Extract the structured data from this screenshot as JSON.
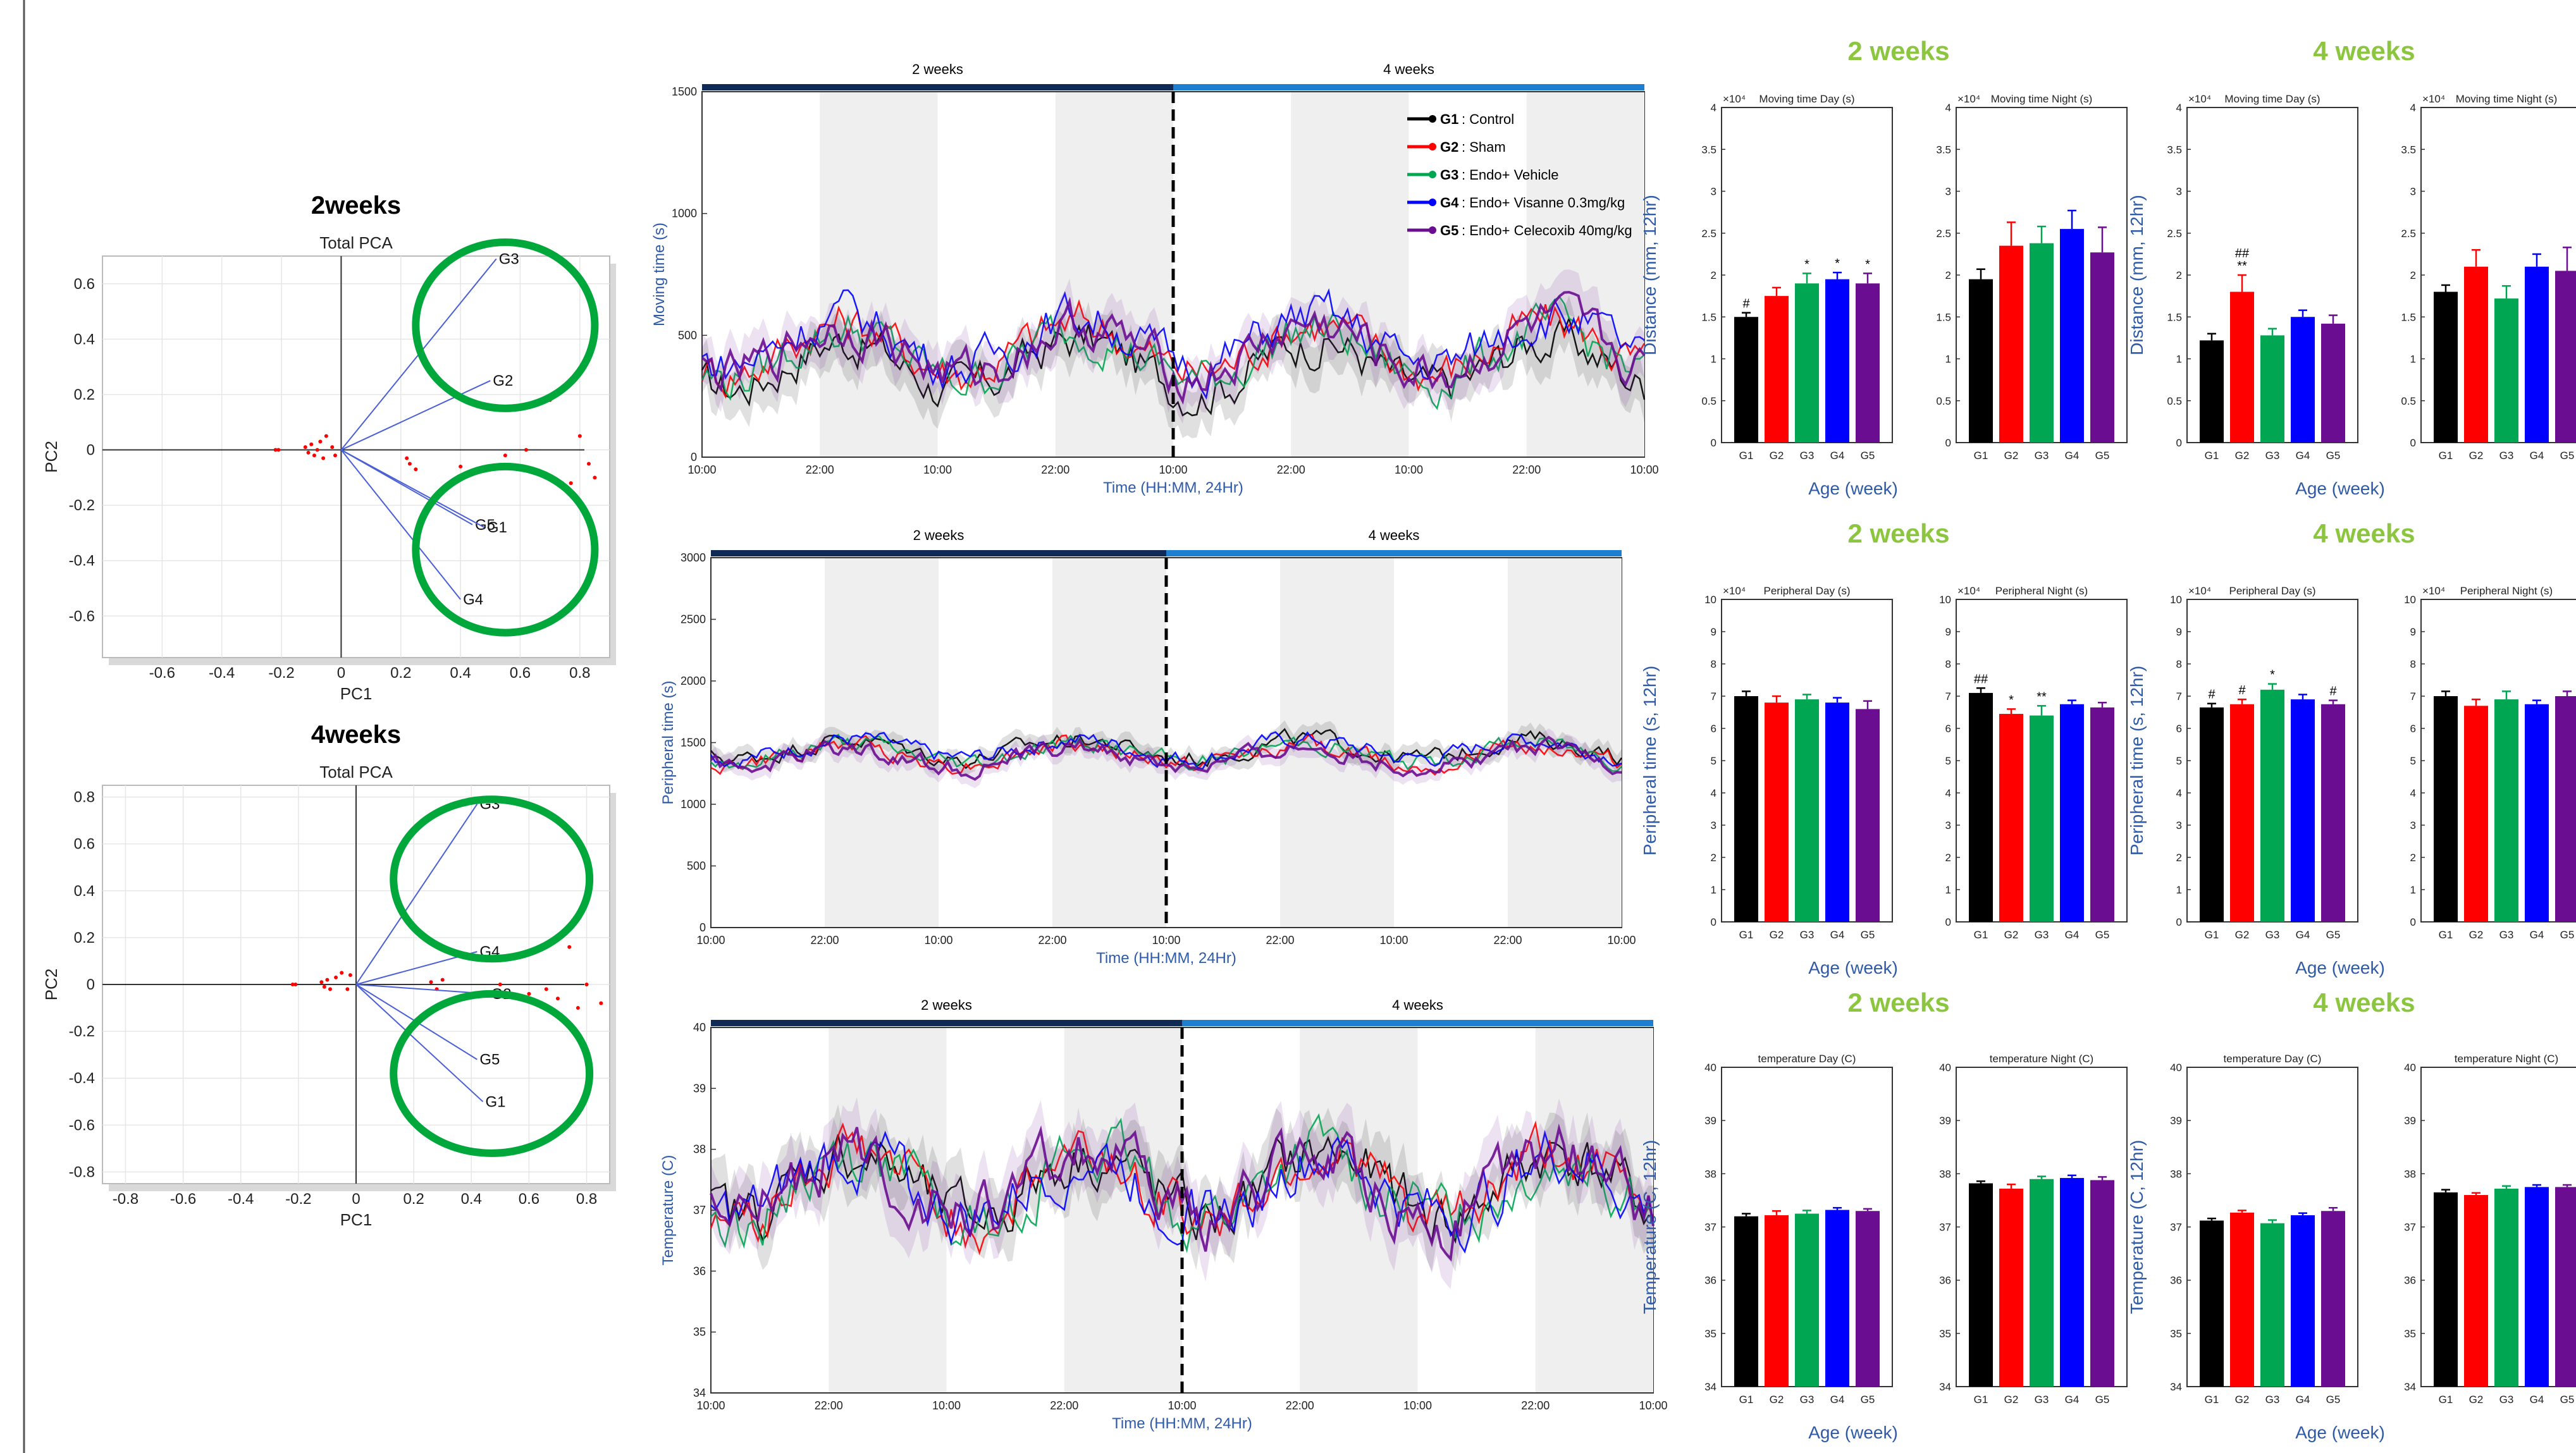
{
  "colors": {
    "G1": "#000000",
    "G2": "#ff0000",
    "G3": "#00a651",
    "G4": "#0000ff",
    "G5": "#6a0d91",
    "green_title": "#8cc63f",
    "blue_label": "#2e5aa8",
    "circle": "#00a83b",
    "night_shade": "#efefef",
    "pca_point": "#ff0000",
    "pca_vector": "#4b5fd6",
    "bar_dark": "#0f2a55",
    "bar_light": "#1e7fd0"
  },
  "chart_data": [
    {
      "id": "pca_2weeks",
      "type": "scatter",
      "heading": "2weeks",
      "title": "Total PCA",
      "xlabel": "PC1",
      "ylabel": "PC2",
      "xlim": [
        -0.8,
        0.9
      ],
      "ylim": [
        -0.75,
        0.7
      ],
      "xticks": [
        "-0.6",
        "-0.4",
        "-0.2",
        "0",
        "0.2",
        "0.4",
        "0.6",
        "0.8"
      ],
      "yticks": [
        "-0.6",
        "-0.4",
        "-0.2",
        "0",
        "0.2",
        "0.4",
        "0.6"
      ],
      "vectors": [
        {
          "label": "G3",
          "x": 0.52,
          "y": 0.69
        },
        {
          "label": "G2",
          "x": 0.5,
          "y": 0.25
        },
        {
          "label": "G5",
          "x": 0.44,
          "y": -0.27
        },
        {
          "label": "G1",
          "x": 0.48,
          "y": -0.28
        },
        {
          "label": "G4",
          "x": 0.4,
          "y": -0.54
        }
      ],
      "points": [
        [
          -0.22,
          0
        ],
        [
          -0.21,
          0
        ],
        [
          -0.12,
          0.01
        ],
        [
          -0.11,
          -0.01
        ],
        [
          -0.1,
          0.02
        ],
        [
          -0.09,
          -0.02
        ],
        [
          -0.08,
          0
        ],
        [
          -0.07,
          0.03
        ],
        [
          -0.06,
          -0.03
        ],
        [
          -0.05,
          0.05
        ],
        [
          -0.03,
          0.01
        ],
        [
          -0.02,
          -0.02
        ],
        [
          0.22,
          -0.03
        ],
        [
          0.23,
          -0.05
        ],
        [
          0.25,
          -0.07
        ],
        [
          0.4,
          -0.06
        ],
        [
          0.55,
          -0.02
        ],
        [
          0.62,
          0.0
        ],
        [
          0.7,
          0.18
        ],
        [
          0.77,
          -0.12
        ],
        [
          0.8,
          0.05
        ],
        [
          0.83,
          -0.05
        ],
        [
          0.85,
          -0.1
        ]
      ],
      "circles": [
        {
          "cx": 0.55,
          "cy": 0.45,
          "r": 0.3
        },
        {
          "cx": 0.55,
          "cy": -0.36,
          "r": 0.3
        }
      ]
    },
    {
      "id": "pca_4weeks",
      "type": "scatter",
      "heading": "4weeks",
      "title": "Total PCA",
      "xlabel": "PC1",
      "ylabel": "PC2",
      "xlim": [
        -0.88,
        0.88
      ],
      "ylim": [
        -0.85,
        0.85
      ],
      "xticks": [
        "-0.8",
        "-0.6",
        "-0.4",
        "-0.2",
        "0",
        "0.2",
        "0.4",
        "0.6",
        "0.8"
      ],
      "yticks": [
        "-0.8",
        "-0.6",
        "-0.4",
        "-0.2",
        "0",
        "0.2",
        "0.4",
        "0.6",
        "0.8"
      ],
      "vectors": [
        {
          "label": "G3",
          "x": 0.42,
          "y": 0.77
        },
        {
          "label": "G4",
          "x": 0.42,
          "y": 0.14
        },
        {
          "label": "G2",
          "x": 0.46,
          "y": -0.04
        },
        {
          "label": "G5",
          "x": 0.42,
          "y": -0.32
        },
        {
          "label": "G1",
          "x": 0.44,
          "y": -0.5
        }
      ],
      "points": [
        [
          -0.22,
          0
        ],
        [
          -0.21,
          0
        ],
        [
          -0.12,
          0.01
        ],
        [
          -0.11,
          -0.01
        ],
        [
          -0.1,
          0.02
        ],
        [
          -0.09,
          -0.02
        ],
        [
          -0.07,
          0.03
        ],
        [
          -0.05,
          0.05
        ],
        [
          -0.03,
          -0.02
        ],
        [
          -0.02,
          0.04
        ],
        [
          0.26,
          0.01
        ],
        [
          0.28,
          -0.02
        ],
        [
          0.3,
          0.02
        ],
        [
          0.5,
          0.0
        ],
        [
          0.54,
          -0.05
        ],
        [
          0.6,
          -0.04
        ],
        [
          0.63,
          0.15
        ],
        [
          0.66,
          -0.02
        ],
        [
          0.7,
          -0.06
        ],
        [
          0.74,
          0.16
        ],
        [
          0.77,
          -0.1
        ],
        [
          0.8,
          0.0
        ],
        [
          0.85,
          -0.08
        ]
      ],
      "circles": [
        {
          "cx": 0.47,
          "cy": 0.45,
          "r": 0.34
        },
        {
          "cx": 0.47,
          "cy": -0.38,
          "r": 0.34
        }
      ]
    },
    {
      "id": "ts_moving",
      "type": "line",
      "ylabel": "Moving time (s)",
      "xlabel": "Time (HH:MM, 24Hr)",
      "period_labels": [
        "2 weeks",
        "4 weeks"
      ],
      "ylim": [
        0,
        1500
      ],
      "yticks": [
        "0",
        "500",
        "1000",
        "1500"
      ],
      "xticks": [
        "10:00",
        "22:00",
        "10:00",
        "22:00",
        "10:00",
        "22:00",
        "10:00",
        "22:00",
        "10:00"
      ],
      "night_periods": [
        [
          0.5,
          1.0
        ],
        [
          1.5,
          2.0
        ],
        [
          2.5,
          3.0
        ],
        [
          3.5,
          4.0
        ]
      ],
      "series_base": [
        380,
        450,
        420,
        480,
        440,
        430
      ],
      "series_amp": 170
    },
    {
      "id": "ts_peripheral",
      "type": "line",
      "ylabel": "Peripheral time (s)",
      "xlabel": "Time (HH:MM, 24Hr)",
      "period_labels": [
        "2 weeks",
        "4 weeks"
      ],
      "ylim": [
        0,
        3000
      ],
      "yticks": [
        "0",
        "500",
        "1000",
        "1500",
        "2000",
        "2500",
        "3000"
      ],
      "xticks": [
        "10:00",
        "22:00",
        "10:00",
        "22:00",
        "10:00",
        "22:00",
        "10:00",
        "22:00",
        "10:00"
      ],
      "night_periods": [
        [
          0.5,
          1.0
        ],
        [
          1.5,
          2.0
        ],
        [
          2.5,
          3.0
        ],
        [
          3.5,
          4.0
        ]
      ],
      "series_base": [
        1450,
        1400,
        1420,
        1450,
        1380,
        1400
      ],
      "series_amp": 130
    },
    {
      "id": "ts_temperature",
      "type": "line",
      "ylabel": "Temperature (C)",
      "xlabel": "Time (HH:MM, 24Hr)",
      "period_labels": [
        "2 weeks",
        "4 weeks"
      ],
      "ylim": [
        34,
        40
      ],
      "yticks": [
        "34",
        "35",
        "36",
        "37",
        "38",
        "39",
        "40"
      ],
      "xticks": [
        "10:00",
        "22:00",
        "10:00",
        "22:00",
        "10:00",
        "22:00",
        "10:00",
        "22:00",
        "10:00"
      ],
      "night_periods": [
        [
          0.5,
          1.0
        ],
        [
          1.5,
          2.0
        ],
        [
          2.5,
          3.0
        ],
        [
          3.5,
          4.0
        ]
      ],
      "series_base": [
        37.4,
        37.4,
        37.4,
        37.4,
        37.4,
        37.4
      ],
      "series_amp": 0.9
    }
  ],
  "legend": [
    {
      "key": "G1",
      "label": ": Control"
    },
    {
      "key": "G2",
      "label": ": Sham"
    },
    {
      "key": "G3",
      "label": ": Endo+ Vehicle"
    },
    {
      "key": "G4",
      "label": ": Endo+ Visanne 0.3mg/kg"
    },
    {
      "key": "G5",
      "label": ": Endo+ Celecoxib 40mg/kg"
    }
  ],
  "bar_rows": [
    {
      "ylabel": "Distance (mm, 12hr)",
      "xlabel": "Age (week)",
      "panels": [
        {
          "heading": "2 weeks",
          "title": "Moving time Day (s)",
          "mult": "×10⁴",
          "ylim": [
            0,
            4
          ],
          "yticks": [
            "0",
            "0.5",
            "1",
            "1.5",
            "2",
            "2.5",
            "3",
            "3.5",
            "4"
          ],
          "values": [
            1.5,
            1.75,
            1.9,
            1.95,
            1.9
          ],
          "errors": [
            0.05,
            0.1,
            0.12,
            0.08,
            0.12
          ],
          "marks": [
            "#",
            "",
            "*",
            "*",
            "*"
          ]
        },
        {
          "heading": "",
          "title": "Moving time Night (s)",
          "mult": "×10⁴",
          "ylim": [
            0,
            4
          ],
          "yticks": [
            "0",
            "0.5",
            "1",
            "1.5",
            "2",
            "2.5",
            "3",
            "3.5",
            "4"
          ],
          "values": [
            1.95,
            2.35,
            2.38,
            2.55,
            2.27
          ],
          "errors": [
            0.12,
            0.28,
            0.2,
            0.22,
            0.3
          ],
          "marks": [
            "",
            "",
            "",
            "",
            ""
          ]
        },
        {
          "heading": "4 weeks",
          "title": "Moving time Day (s)",
          "mult": "×10⁴",
          "ylim": [
            0,
            4
          ],
          "yticks": [
            "0",
            "0.5",
            "1",
            "1.5",
            "2",
            "2.5",
            "3",
            "3.5",
            "4"
          ],
          "values": [
            1.22,
            1.8,
            1.28,
            1.5,
            1.42
          ],
          "errors": [
            0.08,
            0.2,
            0.08,
            0.08,
            0.1
          ],
          "marks": [
            "",
            "##\n**",
            "",
            "",
            ""
          ]
        },
        {
          "heading": "",
          "title": "Moving time Night (s)",
          "mult": "×10⁴",
          "ylim": [
            0,
            4
          ],
          "yticks": [
            "0",
            "0.5",
            "1",
            "1.5",
            "2",
            "2.5",
            "3",
            "3.5",
            "4"
          ],
          "values": [
            1.8,
            2.1,
            1.72,
            2.1,
            2.05
          ],
          "errors": [
            0.08,
            0.2,
            0.15,
            0.15,
            0.28
          ],
          "marks": [
            "",
            "",
            "",
            "",
            ""
          ]
        }
      ]
    },
    {
      "ylabel": "Peripheral time (s, 12hr)",
      "xlabel": "Age (week)",
      "panels": [
        {
          "heading": "2 weeks",
          "title": "Peripheral Day (s)",
          "mult": "×10⁴",
          "ylim": [
            0,
            10
          ],
          "yticks": [
            "0",
            "1",
            "2",
            "3",
            "4",
            "5",
            "6",
            "7",
            "8",
            "9",
            "10"
          ],
          "values": [
            7.0,
            6.8,
            6.9,
            6.8,
            6.6
          ],
          "errors": [
            0.15,
            0.2,
            0.15,
            0.15,
            0.25
          ],
          "marks": [
            "",
            "",
            "",
            "",
            ""
          ]
        },
        {
          "heading": "",
          "title": "Peripheral Night (s)",
          "mult": "×10⁴",
          "ylim": [
            0,
            10
          ],
          "yticks": [
            "0",
            "1",
            "2",
            "3",
            "4",
            "5",
            "6",
            "7",
            "8",
            "9",
            "10"
          ],
          "values": [
            7.1,
            6.45,
            6.4,
            6.75,
            6.65
          ],
          "errors": [
            0.15,
            0.15,
            0.3,
            0.12,
            0.15
          ],
          "marks": [
            "##",
            "*",
            "**",
            "",
            ""
          ]
        },
        {
          "heading": "4 weeks",
          "title": "Peripheral Day (s)",
          "mult": "×10⁴",
          "ylim": [
            0,
            10
          ],
          "yticks": [
            "0",
            "1",
            "2",
            "3",
            "4",
            "5",
            "6",
            "7",
            "8",
            "9",
            "10"
          ],
          "values": [
            6.65,
            6.75,
            7.2,
            6.9,
            6.75
          ],
          "errors": [
            0.12,
            0.15,
            0.18,
            0.15,
            0.12
          ],
          "marks": [
            "#",
            "#",
            "*",
            "",
            "#"
          ]
        },
        {
          "heading": "",
          "title": "Peripheral Night (s)",
          "mult": "×10⁴",
          "ylim": [
            0,
            10
          ],
          "yticks": [
            "0",
            "1",
            "2",
            "3",
            "4",
            "5",
            "6",
            "7",
            "8",
            "9",
            "10"
          ],
          "values": [
            7.0,
            6.7,
            6.9,
            6.75,
            7.0
          ],
          "errors": [
            0.15,
            0.2,
            0.25,
            0.12,
            0.15
          ],
          "marks": [
            "",
            "",
            "",
            "",
            ""
          ]
        }
      ]
    },
    {
      "ylabel": "Temperature (C, 12hr)",
      "xlabel": "Age (week)",
      "panels": [
        {
          "heading": "2 weeks",
          "title": "temperature Day (C)",
          "mult": "",
          "ylim": [
            34,
            40
          ],
          "yticks": [
            "34",
            "35",
            "36",
            "37",
            "38",
            "39",
            "40"
          ],
          "values": [
            37.2,
            37.22,
            37.25,
            37.32,
            37.3
          ],
          "errors": [
            0.05,
            0.08,
            0.06,
            0.04,
            0.04
          ],
          "marks": [
            "",
            "",
            "",
            "",
            ""
          ]
        },
        {
          "heading": "",
          "title": "temperature Night (C)",
          "mult": "",
          "ylim": [
            34,
            40
          ],
          "yticks": [
            "34",
            "35",
            "36",
            "37",
            "38",
            "39",
            "40"
          ],
          "values": [
            37.82,
            37.72,
            37.9,
            37.92,
            37.88
          ],
          "errors": [
            0.04,
            0.08,
            0.05,
            0.05,
            0.06
          ],
          "marks": [
            "",
            "",
            "",
            "",
            ""
          ]
        },
        {
          "heading": "4 weeks",
          "title": "temperature Day (C)",
          "mult": "",
          "ylim": [
            34,
            40
          ],
          "yticks": [
            "34",
            "35",
            "36",
            "37",
            "38",
            "39",
            "40"
          ],
          "values": [
            37.12,
            37.27,
            37.07,
            37.22,
            37.3
          ],
          "errors": [
            0.04,
            0.04,
            0.06,
            0.04,
            0.06
          ],
          "marks": [
            "",
            "",
            "",
            "",
            ""
          ]
        },
        {
          "heading": "",
          "title": "temperature Night (C)",
          "mult": "",
          "ylim": [
            34,
            40
          ],
          "yticks": [
            "34",
            "35",
            "36",
            "37",
            "38",
            "39",
            "40"
          ],
          "values": [
            37.65,
            37.6,
            37.72,
            37.75,
            37.75
          ],
          "errors": [
            0.05,
            0.04,
            0.05,
            0.04,
            0.04
          ],
          "marks": [
            "",
            "",
            "",
            "",
            ""
          ]
        }
      ]
    }
  ],
  "bar_categories": [
    "G1",
    "G2",
    "G3",
    "G4",
    "G5"
  ]
}
